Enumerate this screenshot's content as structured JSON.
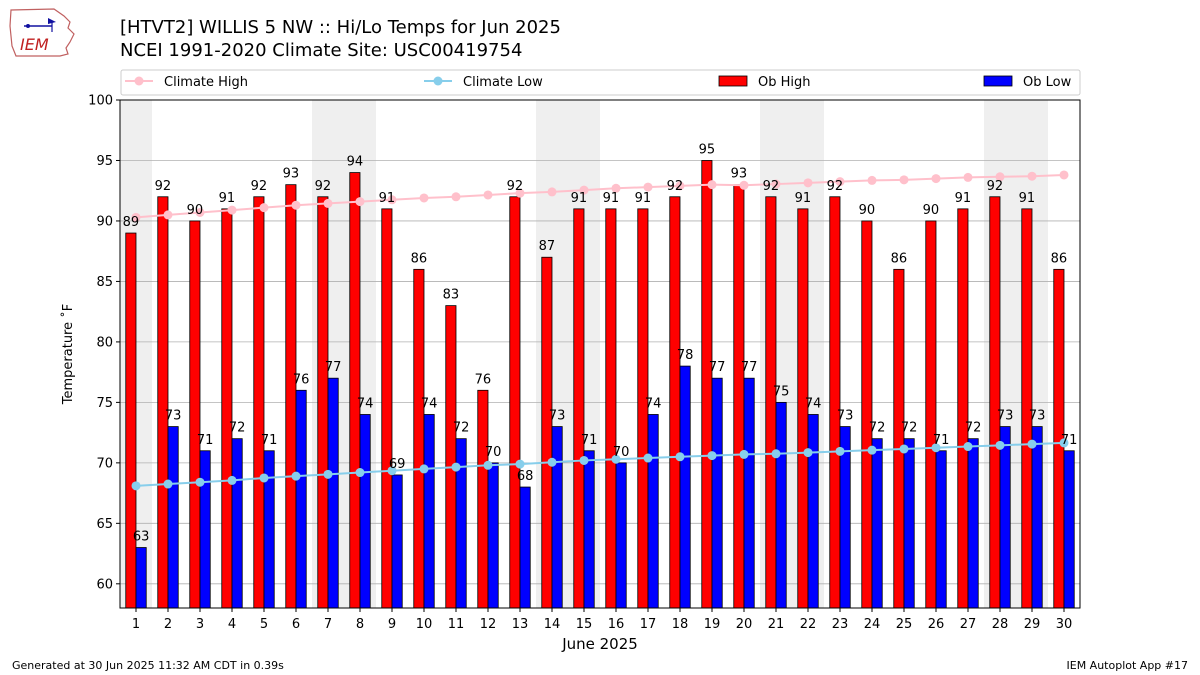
{
  "header": {
    "title_line1": "[HTVT2] WILLIS 5 NW :: Hi/Lo Temps for Jun 2025",
    "title_line2": "NCEI 1991-2020 Climate Site: USC00419754",
    "logo_text": "IEM"
  },
  "footer": {
    "generated": "Generated at 30 Jun 2025 11:32 AM CDT in 0.39s",
    "app": "IEM Autoplot App #17"
  },
  "colors": {
    "ob_high": "#ff0000",
    "ob_low": "#0000ff",
    "climate_high": "#ffc0cb",
    "climate_low": "#87ceeb",
    "weekend_band": "#efefef",
    "grid": "#b0b0b0"
  },
  "chart_data": {
    "type": "bar",
    "xlabel": "June 2025",
    "ylabel": "Temperature ˚F",
    "ylim": [
      58,
      100
    ],
    "yticks": [
      60,
      65,
      70,
      75,
      80,
      85,
      90,
      95,
      100
    ],
    "grid": "horizontal",
    "legend_position": "top",
    "categories": [
      "1",
      "2",
      "3",
      "4",
      "5",
      "6",
      "7",
      "8",
      "9",
      "10",
      "11",
      "12",
      "13",
      "14",
      "15",
      "16",
      "17",
      "18",
      "19",
      "20",
      "21",
      "22",
      "23",
      "24",
      "25",
      "26",
      "27",
      "28",
      "29",
      "30"
    ],
    "shaded_days": [
      1,
      7,
      8,
      14,
      15,
      21,
      22,
      28,
      29
    ],
    "series": [
      {
        "name": "Climate High",
        "type": "line",
        "values": [
          90.3,
          90.5,
          90.7,
          90.9,
          91.1,
          91.3,
          91.45,
          91.6,
          91.75,
          91.9,
          92.0,
          92.15,
          92.3,
          92.4,
          92.55,
          92.7,
          92.8,
          92.9,
          93.0,
          92.95,
          93.05,
          93.15,
          93.25,
          93.35,
          93.4,
          93.5,
          93.6,
          93.65,
          93.7,
          93.8
        ]
      },
      {
        "name": "Climate Low",
        "type": "line",
        "values": [
          68.1,
          68.25,
          68.4,
          68.55,
          68.75,
          68.9,
          69.05,
          69.2,
          69.35,
          69.5,
          69.65,
          69.8,
          69.9,
          70.05,
          70.2,
          70.3,
          70.4,
          70.5,
          70.6,
          70.7,
          70.75,
          70.85,
          70.95,
          71.05,
          71.15,
          71.25,
          71.35,
          71.45,
          71.55,
          71.65
        ]
      },
      {
        "name": "Ob High",
        "type": "bar",
        "values": [
          89,
          92,
          90,
          91,
          92,
          93,
          92,
          94,
          91,
          86,
          83,
          76,
          92,
          87,
          91,
          91,
          91,
          92,
          95,
          93,
          92,
          91,
          92,
          90,
          86,
          90,
          91,
          92,
          91,
          86
        ]
      },
      {
        "name": "Ob Low",
        "type": "bar",
        "values": [
          63,
          73,
          71,
          72,
          71,
          76,
          77,
          74,
          69,
          74,
          72,
          70,
          68,
          73,
          71,
          70,
          74,
          78,
          77,
          77,
          75,
          74,
          73,
          72,
          72,
          71,
          72,
          73,
          73,
          71
        ]
      }
    ]
  }
}
